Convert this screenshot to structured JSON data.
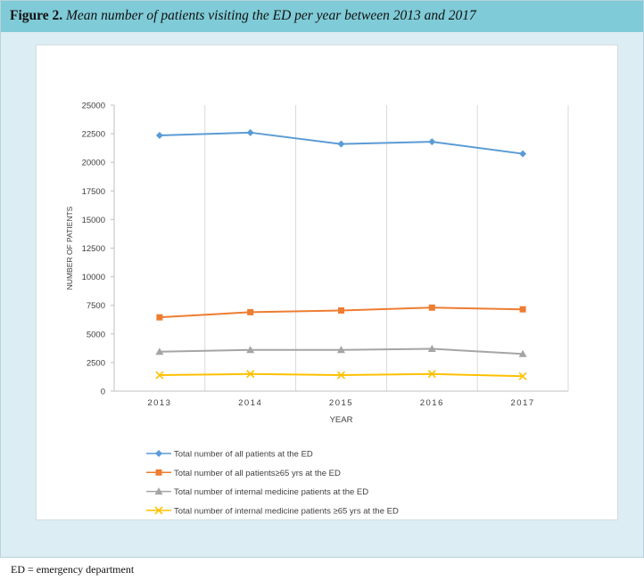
{
  "figure": {
    "label": "Figure 2.",
    "title": "Mean number of patients visiting the ED per year between 2013 and 2017"
  },
  "footnote": "ED = emergency department",
  "chart_data": {
    "type": "line",
    "categories": [
      "2013",
      "2014",
      "2015",
      "2016",
      "2017"
    ],
    "xlabel": "YEAR",
    "ylabel": "NUMBER OF PATIENTS",
    "ylim": [
      0,
      25000
    ],
    "yticks": [
      "0",
      "2500",
      "5000",
      "7500",
      "10000",
      "12500",
      "15000",
      "17500",
      "20000",
      "22500",
      "25000"
    ],
    "grid": "vertical",
    "legend_placement": "bottom",
    "series": [
      {
        "name": "Total number of all patients at the ED",
        "values": [
          22350,
          22600,
          21600,
          21800,
          20750
        ],
        "color": "#5b9bd5",
        "marker": "diamond"
      },
      {
        "name": "Total number of all patients≥65 yrs at the ED",
        "values": [
          6450,
          6900,
          7050,
          7300,
          7150
        ],
        "color": "#ed7d31",
        "marker": "square"
      },
      {
        "name": "Total number of internal medicine patients at the ED",
        "values": [
          3450,
          3600,
          3600,
          3700,
          3250
        ],
        "color": "#a5a5a5",
        "marker": "triangle"
      },
      {
        "name": "Total number of internal medicine patients ≥65 yrs at the ED",
        "values": [
          1400,
          1500,
          1400,
          1500,
          1300
        ],
        "color": "#ffc000",
        "marker": "x"
      }
    ]
  }
}
